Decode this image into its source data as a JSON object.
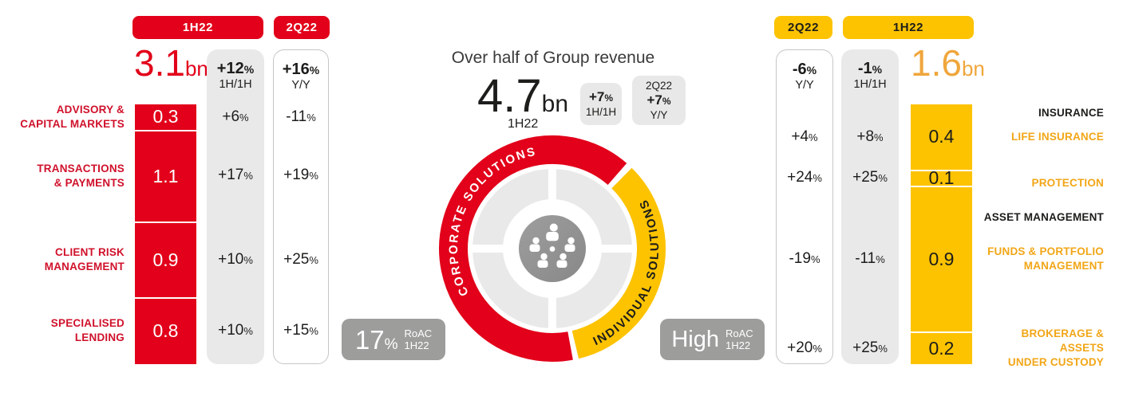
{
  "ui": {
    "percent": "%"
  },
  "palette": {
    "red": "#e2001a",
    "label_red": "#d0112b",
    "yellow": "#fdc300",
    "orange_total": "#f0a63c",
    "orange_label": "#f2a617",
    "gray_column": "#e9e9e9",
    "badge_gray": "#9d9d9c",
    "dark_text": "#1d1d1b"
  },
  "left": {
    "bar_col_header": "1H22",
    "yy_col_header": "2Q22",
    "total": "3.1",
    "unit": "bn",
    "hh": {
      "value": "+12",
      "period": "1H/1H"
    },
    "yy": {
      "value": "+16",
      "period": "Y/Y"
    },
    "segments": [
      {
        "lines": [
          "ADVISORY &",
          "CAPITAL MARKETS"
        ],
        "value": "0.3",
        "hh": "+6",
        "yy": "-11"
      },
      {
        "lines": [
          "TRANSACTIONS",
          "& PAYMENTS"
        ],
        "value": "1.1",
        "hh": "+17",
        "yy": "+19"
      },
      {
        "lines": [
          "CLIENT RISK",
          "MANAGEMENT"
        ],
        "value": "0.9",
        "hh": "+10",
        "yy": "+25"
      },
      {
        "lines": [
          "SPECIALISED",
          "LENDING"
        ],
        "value": "0.8",
        "hh": "+10",
        "yy": "+15"
      }
    ]
  },
  "center": {
    "title": "Over half of Group revenue",
    "total": "4.7",
    "unit": "bn",
    "period": "1H22",
    "hh_badge": {
      "value": "+7",
      "period": "1H/1H"
    },
    "yy_badge": {
      "quarter": "2Q22",
      "value": "+7",
      "period": "Y/Y"
    },
    "donut": {
      "corporate_label": "CORPORATE SOLUTIONS",
      "individual_label": "INDIVIDUAL SOLUTIONS"
    },
    "roac_corporate": {
      "value": "17",
      "pct": "%",
      "metric": "RoAC",
      "period": "1H22"
    },
    "roac_individual": {
      "value": "High",
      "metric": "RoAC",
      "period": "1H22"
    }
  },
  "right": {
    "bar_col_header": "1H22",
    "yy_col_header": "2Q22",
    "total": "1.6",
    "unit": "bn",
    "hh": {
      "value": "-1",
      "period": "1H/1H"
    },
    "yy": {
      "value": "-6",
      "period": "Y/Y"
    },
    "group_labels": [
      {
        "text": "INSURANCE"
      },
      {
        "text": "ASSET MANAGEMENT"
      }
    ],
    "segments": [
      {
        "lines": [
          "LIFE INSURANCE"
        ],
        "value": "0.4",
        "hh": "+8",
        "yy": "+4"
      },
      {
        "lines": [
          "PROTECTION"
        ],
        "value": "0.1",
        "hh": "+25",
        "yy": "+24"
      },
      {
        "lines": [
          "FUNDS & PORTFOLIO",
          "MANAGEMENT"
        ],
        "value": "0.9",
        "hh": "-11",
        "yy": "-19"
      },
      {
        "lines": [
          "BROKERAGE & ASSETS",
          "UNDER CUSTODY"
        ],
        "value": "0.2",
        "hh": "+25",
        "yy": "+20"
      }
    ]
  },
  "chart_data": [
    {
      "type": "bar",
      "stacked": true,
      "title": "Corporate solutions revenue by business line",
      "period": "1H22",
      "unit": "bn",
      "total": 3.1,
      "total_growth_1h1h_pct": 12,
      "total_growth_2q22_yoy_pct": 16,
      "categories": [
        "Advisory & Capital Markets",
        "Transactions & Payments",
        "Client Risk Management",
        "Specialised Lending"
      ],
      "values": [
        0.3,
        1.1,
        0.9,
        0.8
      ],
      "growth_1h1h_pct": [
        6,
        17,
        10,
        10
      ],
      "growth_2q22_yoy_pct": [
        -11,
        19,
        25,
        15
      ],
      "roac_1h22": "17%",
      "color": "#e2001a"
    },
    {
      "type": "pie",
      "title": "Over half of Group revenue",
      "total": "4.7bn",
      "period": "1H22",
      "growth_1h1h_pct": 7,
      "growth_2q22_yoy_pct": 7,
      "slices": [
        {
          "label": "Corporate Solutions",
          "value_bn": 3.1,
          "share_pct": 66,
          "color": "#e2001a"
        },
        {
          "label": "Individual Solutions",
          "value_bn": 1.6,
          "share_pct": 34,
          "color": "#fdc300"
        }
      ]
    },
    {
      "type": "bar",
      "stacked": true,
      "title": "Individual solutions revenue by business line",
      "period": "1H22",
      "unit": "bn",
      "total": 1.6,
      "total_growth_1h1h_pct": -1,
      "total_growth_2q22_yoy_pct": -6,
      "group_headers": [
        "Insurance",
        "Asset Management"
      ],
      "categories": [
        "Life Insurance",
        "Protection",
        "Funds & Portfolio Management",
        "Brokerage & Assets under Custody"
      ],
      "values": [
        0.4,
        0.1,
        0.9,
        0.2
      ],
      "growth_1h1h_pct": [
        8,
        25,
        -11,
        25
      ],
      "growth_2q22_yoy_pct": [
        4,
        24,
        -19,
        20
      ],
      "roac_1h22": "High",
      "color": "#fdc300"
    }
  ]
}
